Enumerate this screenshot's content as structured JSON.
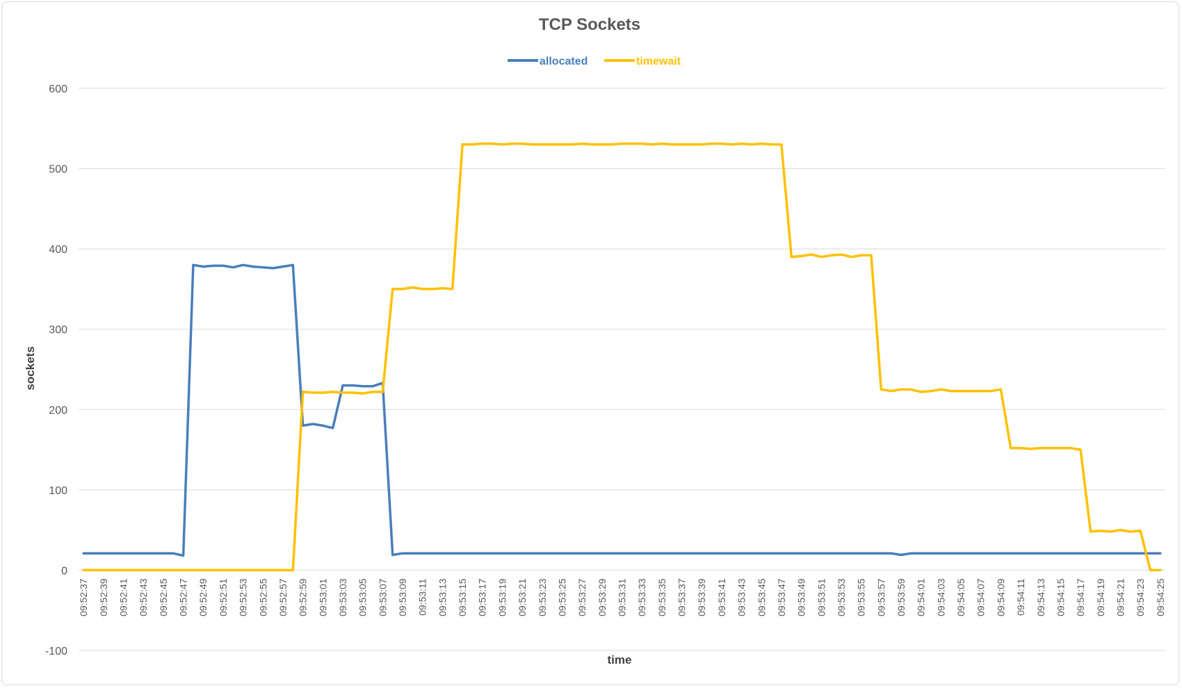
{
  "chart_data": {
    "type": "line",
    "title": "TCP Sockets",
    "xlabel": "time",
    "ylabel": "sockets",
    "ylim": [
      -100,
      600
    ],
    "yticks": [
      -100,
      0,
      100,
      200,
      300,
      400,
      500,
      600
    ],
    "grid": true,
    "legend_position": "top",
    "x": [
      "09:52:37",
      "09:52:38",
      "09:52:39",
      "09:52:40",
      "09:52:41",
      "09:52:42",
      "09:52:43",
      "09:52:44",
      "09:52:45",
      "09:52:46",
      "09:52:47",
      "09:52:48",
      "09:52:49",
      "09:52:50",
      "09:52:51",
      "09:52:52",
      "09:52:53",
      "09:52:54",
      "09:52:55",
      "09:52:56",
      "09:52:57",
      "09:52:58",
      "09:52:59",
      "09:53:00",
      "09:53:01",
      "09:53:02",
      "09:53:03",
      "09:53:04",
      "09:53:05",
      "09:53:06",
      "09:53:07",
      "09:53:08",
      "09:53:09",
      "09:53:10",
      "09:53:11",
      "09:53:12",
      "09:53:13",
      "09:53:14",
      "09:53:15",
      "09:53:16",
      "09:53:17",
      "09:53:18",
      "09:53:19",
      "09:53:20",
      "09:53:21",
      "09:53:22",
      "09:53:23",
      "09:53:24",
      "09:53:25",
      "09:53:26",
      "09:53:27",
      "09:53:28",
      "09:53:29",
      "09:53:30",
      "09:53:31",
      "09:53:32",
      "09:53:33",
      "09:53:34",
      "09:53:35",
      "09:53:36",
      "09:53:37",
      "09:53:38",
      "09:53:39",
      "09:53:40",
      "09:53:41",
      "09:53:42",
      "09:53:43",
      "09:53:44",
      "09:53:45",
      "09:53:46",
      "09:53:47",
      "09:53:48",
      "09:53:49",
      "09:53:50",
      "09:53:51",
      "09:53:52",
      "09:53:53",
      "09:53:54",
      "09:53:55",
      "09:53:56",
      "09:53:57",
      "09:53:58",
      "09:53:59",
      "09:54:00",
      "09:54:01",
      "09:54:02",
      "09:54:03",
      "09:54:04",
      "09:54:05",
      "09:54:06",
      "09:54:07",
      "09:54:08",
      "09:54:09",
      "09:54:10",
      "09:54:11",
      "09:54:12",
      "09:54:13",
      "09:54:14",
      "09:54:15",
      "09:54:16",
      "09:54:17",
      "09:54:18",
      "09:54:19",
      "09:54:20",
      "09:54:21",
      "09:54:22",
      "09:54:23",
      "09:54:24",
      "09:54:25"
    ],
    "series": [
      {
        "name": "allocated",
        "color": "#4a7ebb",
        "values": [
          21,
          21,
          21,
          21,
          21,
          21,
          21,
          21,
          21,
          21,
          18,
          380,
          378,
          379,
          379,
          377,
          380,
          378,
          377,
          376,
          378,
          380,
          180,
          182,
          180,
          177,
          230,
          230,
          229,
          229,
          233,
          19,
          21,
          21,
          21,
          21,
          21,
          21,
          21,
          21,
          21,
          21,
          21,
          21,
          21,
          21,
          21,
          21,
          21,
          21,
          21,
          21,
          21,
          21,
          21,
          21,
          21,
          21,
          21,
          21,
          21,
          21,
          21,
          21,
          21,
          21,
          21,
          21,
          21,
          21,
          21,
          21,
          21,
          21,
          21,
          21,
          21,
          21,
          21,
          21,
          21,
          21,
          19,
          21,
          21,
          21,
          21,
          21,
          21,
          21,
          21,
          21,
          21,
          21,
          21,
          21,
          21,
          21,
          21,
          21,
          21,
          21,
          21,
          21,
          21,
          21,
          21,
          21,
          21
        ]
      },
      {
        "name": "timewait",
        "color": "#ffc000",
        "values": [
          0,
          0,
          0,
          0,
          0,
          0,
          0,
          0,
          0,
          0,
          0,
          0,
          0,
          0,
          0,
          0,
          0,
          0,
          0,
          0,
          0,
          0,
          222,
          221,
          221,
          222,
          221,
          221,
          220,
          222,
          222,
          350,
          350,
          352,
          350,
          350,
          351,
          350,
          530,
          530,
          531,
          531,
          530,
          531,
          531,
          530,
          530,
          530,
          530,
          530,
          531,
          530,
          530,
          530,
          531,
          531,
          531,
          530,
          531,
          530,
          530,
          530,
          530,
          531,
          531,
          530,
          531,
          530,
          531,
          530,
          530,
          390,
          391,
          393,
          390,
          392,
          393,
          390,
          392,
          392,
          225,
          223,
          225,
          225,
          222,
          223,
          225,
          223,
          223,
          223,
          223,
          223,
          225,
          152,
          152,
          151,
          152,
          152,
          152,
          152,
          150,
          48,
          49,
          48,
          50,
          48,
          49,
          0,
          0
        ]
      }
    ]
  }
}
